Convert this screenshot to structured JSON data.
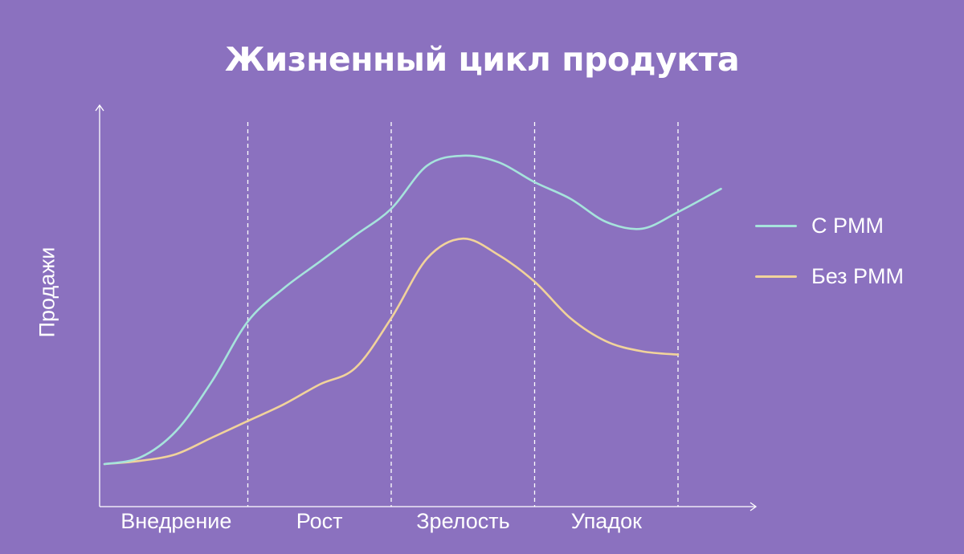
{
  "chart_data": {
    "type": "line",
    "title": "Жизненный цикл продукта",
    "xlabel": "",
    "ylabel": "Продажи",
    "categories": [
      "Внедрение",
      "Рост",
      "Зрелость",
      "Упадок"
    ],
    "grid": false,
    "legend_position": "right",
    "x": [
      0,
      0.25,
      0.5,
      0.75,
      1,
      1.25,
      1.5,
      1.75,
      2,
      2.25,
      2.5,
      2.75,
      3,
      3.25,
      3.5,
      3.75,
      4,
      4.3
    ],
    "series": [
      {
        "name": "С PMM",
        "color": "#a6e3dc",
        "values": [
          0.0,
          0.02,
          0.1,
          0.25,
          0.43,
          0.53,
          0.61,
          0.69,
          0.77,
          0.9,
          0.93,
          0.91,
          0.85,
          0.8,
          0.73,
          0.71,
          0.76,
          0.83
        ]
      },
      {
        "name": "Без PMM",
        "color": "#f1d39b",
        "values": [
          0.0,
          0.01,
          0.03,
          0.08,
          0.13,
          0.18,
          0.24,
          0.29,
          0.44,
          0.62,
          0.68,
          0.63,
          0.55,
          0.44,
          0.37,
          0.34,
          0.33,
          null
        ]
      }
    ]
  }
}
